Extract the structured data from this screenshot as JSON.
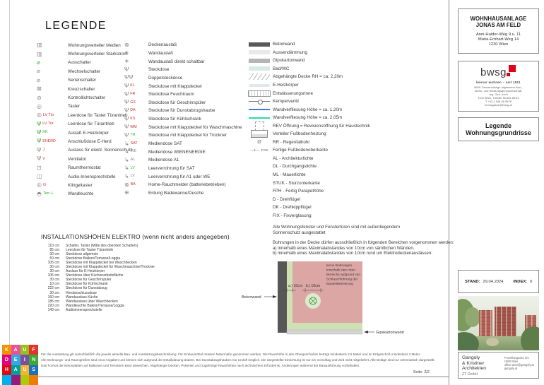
{
  "header": {
    "title": "LEGENDE"
  },
  "colors": {
    "red": "#c9302c",
    "green": "#3aaa35",
    "gray": "#8a8a8a",
    "accent_bwsg": "#e2001a",
    "tile_blue": "#3d7bd0",
    "tile_teal": "#2ed9a3",
    "beton": "#595959"
  },
  "symbols": {
    "verteiler": {
      "glyph": "▥"
    },
    "switch": {
      "glyph": "⌀"
    },
    "cross-switch": {
      "glyph": "⊠"
    },
    "control-switch": {
      "glyph": "⊘"
    },
    "button": {
      "glyph": "◎"
    },
    "psi": {
      "glyph": "Ψ"
    },
    "psi-double": {
      "glyph": "ΨΨ"
    },
    "ceiling-outlet": {
      "glyph": "⊗"
    },
    "wall-outlet": {
      "glyph": "∗"
    },
    "arrow": {
      "glyph": "↳"
    },
    "earth": {
      "glyph": "⊕"
    },
    "thermostat": {
      "glyph": "⊡"
    },
    "intercom": {
      "glyph": "◫"
    },
    "dome": {
      "glyph": "◓"
    }
  },
  "legend_col1": [
    {
      "sym": "verteiler",
      "label": "Wohnungsverteiler Medien"
    },
    {
      "sym": "verteiler",
      "label": "Wohnungsverteiler Starkstrom"
    },
    {
      "sym": "switch",
      "symColor": "green",
      "label": "Ausschalter"
    },
    {
      "sym": "switch",
      "label": "Wechselschalter"
    },
    {
      "sym": "switch",
      "label": "Serienschalter"
    },
    {
      "sym": "cross-switch",
      "label": "Kreuzschalter"
    },
    {
      "sym": "control-switch",
      "label": "Kontrollichtschalter"
    },
    {
      "sym": "button",
      "label": "Taster"
    },
    {
      "sym": "button",
      "tag": "LV Tür",
      "tagColor": "red",
      "label": "Leerdose für Taster Türantrieb"
    },
    {
      "sym": "psi",
      "symColor": "green",
      "tag": "LV Tür",
      "tagColor": "red",
      "label": "Leerdose für Türantrieb"
    },
    {
      "sym": "psi",
      "symColor": "green",
      "tag": "HK",
      "tagColor": "green",
      "label": "Auslaß E-Heizkörper"
    },
    {
      "sym": "psi",
      "symColor": "green",
      "tag": "EHERD",
      "tagColor": "red",
      "label": "Anschlußdose E-Herd"
    },
    {
      "sym": "psi",
      "tag": "J",
      "tagColor": "red",
      "label": "Auslass für elektr. Sonnenschutz"
    },
    {
      "sym": "psi",
      "tag": "V",
      "tagColor": "red",
      "label": "Ventilator"
    },
    {
      "sym": "thermostat",
      "label": "Raumthermostat"
    },
    {
      "sym": "intercom",
      "label": "Audio-Innensprechstelle"
    },
    {
      "sym": "button",
      "tag": "G",
      "tagColor": "red",
      "label": "Klingeltaster"
    },
    {
      "sym": "dome",
      "tag": "Terr.-L",
      "tagColor": "green",
      "label": "Wandleuchte"
    }
  ],
  "legend_col2": [
    {
      "sym": "ceiling-outlet",
      "label": "Deckenauslaß"
    },
    {
      "sym": "wall-outlet",
      "label": "Wandauslaß"
    },
    {
      "sym": "wall-outlet",
      "label": "Wandauslaß direkt schaltbar"
    },
    {
      "sym": "psi",
      "label": "Steckdose"
    },
    {
      "sym": "psi-double",
      "label": "Doppelsteckdose"
    },
    {
      "sym": "psi",
      "tag": "KL",
      "tagColor": "red",
      "label": "Steckdose mit Klappdeckel"
    },
    {
      "sym": "psi",
      "tag": "FR",
      "tagColor": "red",
      "label": "Steckdose Feuchtraum"
    },
    {
      "sym": "psi",
      "tag": "GS",
      "tagColor": "red",
      "label": "Steckdose für Geschirrspüler"
    },
    {
      "sym": "psi",
      "tag": "DA",
      "tagColor": "red",
      "label": "Steckdose für Dunstabzugshaube"
    },
    {
      "sym": "psi",
      "tag": "KS",
      "tagColor": "red",
      "label": "Steckdose für Kühlschrank"
    },
    {
      "sym": "psi",
      "tag": "WM",
      "tagColor": "red",
      "label": "Steckdose mit Klappdeckel für Waschmaschine"
    },
    {
      "sym": "psi",
      "tag": "TR",
      "tagColor": "green",
      "label": "Steckdose mit Klappdeckel für Trockner"
    },
    {
      "sym": "arrow",
      "tag": "SAT",
      "tagColor": "red",
      "label": "Mediendose SAT"
    },
    {
      "sym": "arrow",
      "tag": "WE",
      "tagColor": "gray",
      "label": "Mediendose WIENENERGIE"
    },
    {
      "sym": "arrow",
      "tag": "A1",
      "tagColor": "gray",
      "label": "Mediendose A1"
    },
    {
      "sym": "arrow",
      "tag": "LV",
      "tagColor": "green",
      "label": "Leerverrohrung für SAT"
    },
    {
      "sym": "arrow",
      "tag": "LV",
      "tagColor": "gray",
      "label": "Leerverrohrung für A1 oder WE"
    },
    {
      "sym": "ceiling-outlet",
      "tag": "BA",
      "tagColor": "red",
      "label": "Home-Rauchmelder (batteriebetrieben)"
    },
    {
      "sym": "earth",
      "label": "Erdung Badewanne/Dusche"
    }
  ],
  "legend_col3": [
    {
      "sw": "beton",
      "label": "Betonwand"
    },
    {
      "sw": "daemm",
      "label": "Aussendämmung"
    },
    {
      "sw": "gips",
      "label": "Gipskartonwand"
    },
    {
      "sw": "badwc",
      "label": "Bad/WC"
    },
    {
      "sw": "hatch",
      "label": "Abgehängte Decke RH = ca. 2,20m"
    },
    {
      "sw": "eheiz",
      "label": "E-Heizkörper"
    },
    {
      "sw": "rinne",
      "label": "Entwässerungsrinne"
    },
    {
      "sw": "kemper",
      "label": "Kemperventil"
    },
    {
      "sw": "blue",
      "label": "Wandverfliesung Höhe = ca. 1,20m"
    },
    {
      "sw": "green",
      "label": "Wandverfliesung Höhe = ca. 2,05m"
    },
    {
      "sw": "rev",
      "label": "REV Öffnung = Revisionsöffnung für Haustechnik"
    },
    {
      "sw": "verteiler",
      "label": "Verteiler Fußbodenheizung"
    },
    {
      "sw": "rr",
      "swText": "Ø",
      "label": "RR - Regenfallrohr"
    },
    {
      "sw": "fok",
      "swText": "—✛— FOK",
      "label": "Fertige Fußbodenoberkante"
    },
    {
      "sw": "none",
      "label": "AL - Architekturlichte"
    },
    {
      "sw": "none",
      "label": "DL - Durchgangslichte"
    },
    {
      "sw": "none",
      "label": "ML - Mauerlichte"
    },
    {
      "sw": "none",
      "label": "STUK - Sturzunterkante"
    },
    {
      "sw": "none",
      "label": "FPH - Fertig Parapethöhe"
    },
    {
      "sw": "none",
      "label": "D - Drehflügel"
    },
    {
      "sw": "none",
      "label": "DK - Drehkippflügel"
    },
    {
      "sw": "none",
      "label": "FIX - Fixverglasung"
    }
  ],
  "col3_notes": {
    "sonnenschutz": [
      "Alle Wohnungsfenster und Fenstertüren sind mit außenliegendem",
      "Sonnenschutz ausgestattet"
    ],
    "bohrungen": [
      "Bohrungen in der Decke dürfen ausschließlich in folgenden Bereichen vorgenommen werden:",
      "a) innerhalb eines Maximalabstandes von 10cm von sämtlichen Wänden.",
      "b) innerhalb eines Maximalabstandes von 10cm rund um Elektrodeckenauslässen."
    ]
  },
  "install": {
    "title": "INSTALLATIONSHÖHEN ELEKTRO (wenn nicht anders angegeben)",
    "rows": [
      {
        "h": "110 cm",
        "label": "Schalter, Taster (Mitte des obersten Schalters)"
      },
      {
        "h": "85 cm",
        "label": "Leerdose für Taster Türantrieb"
      },
      {
        "h": "30 cm",
        "label": "Steckdose allgemein"
      },
      {
        "h": "50 cm",
        "label": "Steckdose Balkon/Terrasse/Loggia"
      },
      {
        "h": "105 cm",
        "label": "Steckdose mit Klappdeckel bei Waschbecken"
      },
      {
        "h": "30 cm",
        "label": "Steckdose mit Klappdeckel für Waschmaschine/Trockner"
      },
      {
        "h": "30 cm",
        "label": "Auslass für E-Heizkörper"
      },
      {
        "h": "105 cm",
        "label": "Steckdose über Küchenarbeitsfläche"
      },
      {
        "h": "30 cm",
        "label": "Steckdose für Geschirrspüler"
      },
      {
        "h": "10 cm",
        "label": "Steckdose für Kühlschrank"
      },
      {
        "h": "222 cm",
        "label": "Steckdose für Dunstabzug"
      },
      {
        "h": "30 cm",
        "label": "Herdanschlussdose"
      },
      {
        "h": "160 cm",
        "label": "Wandauslass Küche"
      },
      {
        "h": "185 cm",
        "label": "Wandauslass über Waschbecken"
      },
      {
        "h": "220 cm",
        "label": "Wandleuchte Balkon/Terrasse/Loggia"
      },
      {
        "h": "140 cm",
        "label": "Audioinnensprechstelle"
      }
    ]
  },
  "diagram": {
    "label_betonwand": "Betonwand",
    "label_gipskarton": "Gipskartonwand",
    "dim_a": "a.) 10cm",
    "dim_b": "b.) 10cm",
    "note": [
      "keine Bohrungen",
      "innerhalb des roten",
      "Bereichs aufgrund von",
      "Schlauchführung der",
      "Bauteilaktivierung"
    ]
  },
  "titleblock": {
    "project1": "WOHNHAUSANLAGE",
    "project2": "JONAS AM FELD",
    "addr1": "Anni-Haider-Weg 9 u. 11",
    "addr2": "Maria-Ernhart-Weg 14",
    "addr3": "1220 Wien"
  },
  "bwsg": {
    "logo": "bwsg",
    "tagline": "besser wohnen – seit 1911",
    "lines": [
      "BWS Gemeinnützige allgemeine Bau-,",
      "Wohn- und Siedlungsgenossenschaft,",
      "reg. Gen. mbH",
      "1100 Wien, Triester Straße 603/1",
      "T +43 1 546 66 5876",
      "bernagasse@bwsg.at"
    ]
  },
  "sheet": {
    "name1": "Legende",
    "name2": "Wohnungsgrundrisse",
    "stand_label": "STAND:",
    "stand": "29.04.2024",
    "index_label": "INDEX:",
    "index": "0",
    "page_label": "Seite:",
    "page": "2/2"
  },
  "architect": {
    "name1": "Gangoly",
    "name2": "& Kristiner",
    "name3": "Architekten",
    "sub": "ZT GmbH",
    "addr": [
      "Porzellangasse 3/4",
      "1090 Wien",
      "office.wien@gangoly.at",
      "gangoly.at"
    ]
  },
  "finePrint": [
    "Für die Ausstattung gilt ausschließlich die jeweils aktuelle Bau- und Ausstattungsbeschreibung. Für Einbaumöbel müssen Naturmaße genommen werden. Die Raumhöhe in den Obergeschoßen beträgt mindestens 2,5 Meter und im Erdgeschoß mindestens 3 Meter.",
    "Alle Wohnungs- und Raumgrößen sind circa-Angaben und können sich aufgrund der Detailplanung ändern. Bei Dunstabzugshauben nur Umluft möglich. Die dargestellte Einrichtung ist nur ein Vorschlag und wird nicht mitgeliefert. Alle Beläge sind nur schematisch dargestellt.",
    "Das Format der Betonplatten auf Balkonen und Terrassen kann abweichen. Abgehängte Decken, Potterien und zugehörige Raumhöhen nach technischem Erfordernis. Änderungen während der Bauausführung vorbehalten."
  ],
  "kdh": {
    "rows": [
      "KAUF",
      "DEIN",
      "HAUS"
    ],
    "cells": [
      "#f39200",
      "#ea5297",
      "#95c11f",
      "#e6332a",
      "#e6007e",
      "#36a9e1",
      "#7d4e9e",
      "#3aaa35",
      "#e30613",
      "#00a19a",
      "#f9b233",
      "#1d71b8",
      "#00b1eb",
      "#951b81",
      "#afca0b",
      "#ef7d00"
    ]
  }
}
